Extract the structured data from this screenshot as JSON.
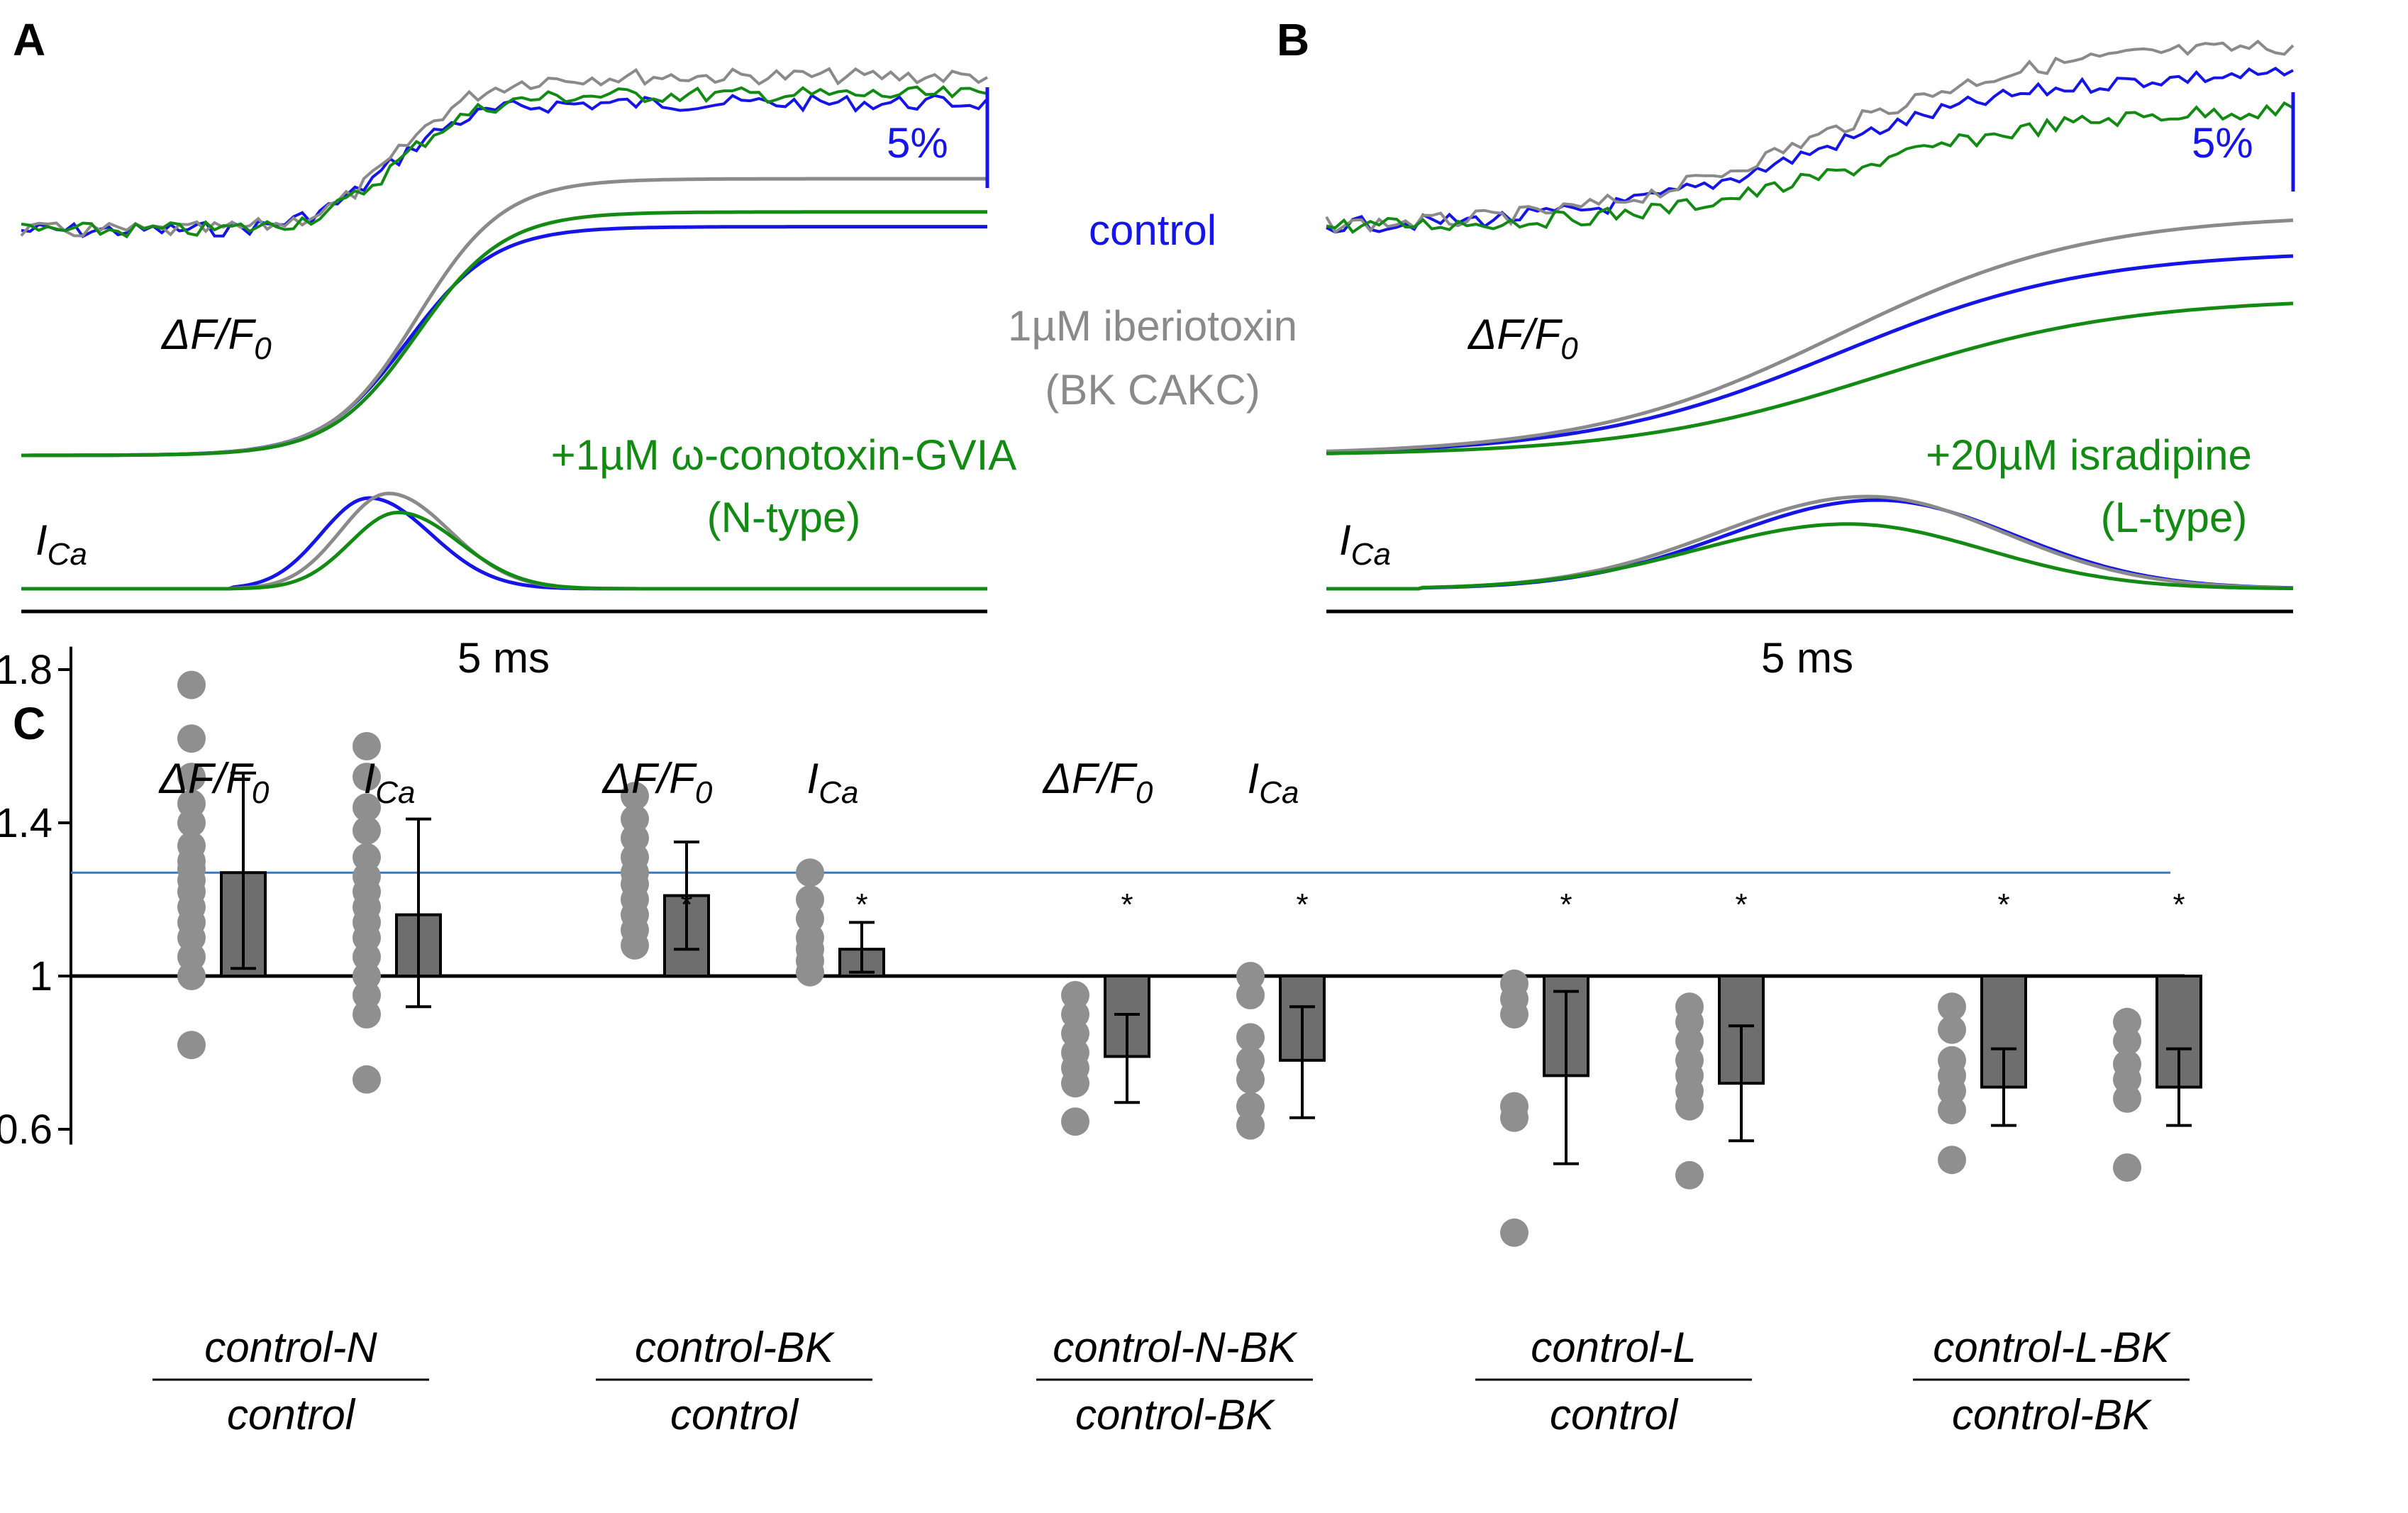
{
  "panels": {
    "A": "A",
    "B": "B",
    "C": "C"
  },
  "colors": {
    "control": "#1515e6",
    "toxin": "#8a8a8a",
    "blocker": "#138a13",
    "dots": "#8f8f8f",
    "bars": "#6e6e6e",
    "refline": "#3a78c0"
  },
  "legend": {
    "control": "control",
    "iberiotoxin": "1µM iberiotoxin",
    "iberiotoxin_sub": "(BK CAKC)",
    "conotoxin": "+1µM ω-conotoxin-GVIA",
    "conotoxin_sub": "(N-type)",
    "isradipine": "+20µM isradipine",
    "isradipine_sub": "(L-type)"
  },
  "trace_labels": {
    "dff": "ΔF/F",
    "dff_sub": "0",
    "ica": "I",
    "ica_sub": "Ca",
    "scale_pct": "5%",
    "time_scale": "5 ms"
  },
  "chart_data": [
    {
      "panel": "A",
      "type": "line",
      "title": "",
      "xlabel": "5 ms",
      "ylabel": "ΔF/F0 (5% scale); ICa",
      "series": [
        {
          "name": "control",
          "trace": "ΔF/F0",
          "baseline": 0,
          "plateau": 0.62,
          "midpoint": 0.4
        },
        {
          "name": "1µM iberiotoxin (BK CAKC)",
          "trace": "ΔF/F0",
          "baseline": 0,
          "plateau": 0.75,
          "midpoint": 0.41
        },
        {
          "name": "+1µM ω-conotoxin-GVIA (N-type)",
          "trace": "ΔF/F0",
          "baseline": 0,
          "plateau": 0.66,
          "midpoint": 0.41
        },
        {
          "name": "control",
          "trace": "ICa",
          "peak_time": 0.36,
          "peak": 1.0
        },
        {
          "name": "1µM iberiotoxin (BK CAKC)",
          "trace": "ICa",
          "peak_time": 0.38,
          "peak": 1.05
        },
        {
          "name": "+1µM ω-conotoxin-GVIA (N-type)",
          "trace": "ICa",
          "peak_time": 0.39,
          "peak": 0.84
        }
      ]
    },
    {
      "panel": "B",
      "type": "line",
      "title": "",
      "xlabel": "5 ms",
      "ylabel": "ΔF/F0 (5% scale); ICa",
      "series": [
        {
          "name": "control",
          "trace": "ΔF/F0",
          "baseline": 0,
          "plateau": 0.78,
          "midpoint": 0.53
        },
        {
          "name": "1µM iberiotoxin (BK CAKC)",
          "trace": "ΔF/F0",
          "baseline": 0,
          "plateau": 0.92,
          "midpoint": 0.53
        },
        {
          "name": "+20µM isradipine (L-type)",
          "trace": "ΔF/F0",
          "baseline": 0,
          "plateau": 0.6,
          "midpoint": 0.57
        },
        {
          "name": "control",
          "trace": "ICa",
          "peak_time": 0.57,
          "peak": 1.0
        },
        {
          "name": "1µM iberiotoxin (BK CAKC)",
          "trace": "ICa",
          "peak_time": 0.56,
          "peak": 1.04
        },
        {
          "name": "+20µM isradipine (L-type)",
          "trace": "ICa",
          "peak_time": 0.54,
          "peak": 0.73
        }
      ]
    },
    {
      "panel": "C",
      "type": "bar",
      "title": "",
      "xlabel": "",
      "ylabel": "",
      "ylim": [
        0.6,
        1.8
      ],
      "yticks": [
        "0.6",
        "1",
        "1.4",
        "1.8"
      ],
      "ytick_values": [
        0.6,
        1.0,
        1.4,
        1.8
      ],
      "baseline": 1.0,
      "reference_line": 1.27,
      "significance_marker": "*",
      "groups": [
        {
          "numerator": "control-N",
          "denominator": "control",
          "show_measure_labels": true
        },
        {
          "numerator": "control-BK",
          "denominator": "control",
          "show_measure_labels": true
        },
        {
          "numerator": "control-N-BK",
          "denominator": "control-BK",
          "show_measure_labels": true
        },
        {
          "numerator": "control-L",
          "denominator": "control",
          "show_measure_labels": false
        },
        {
          "numerator": "control-L-BK",
          "denominator": "control-BK",
          "show_measure_labels": false
        }
      ],
      "measure_labels": {
        "dff": "ΔF/F",
        "dff_sub": "0",
        "ica": "I",
        "ica_sub": "Ca"
      },
      "bars": [
        {
          "group": 0,
          "measure": "ΔF/F0",
          "mean": 1.27,
          "err_lo": 1.02,
          "err_hi": 1.53,
          "significant": false,
          "points": [
            1.76,
            1.62,
            1.52,
            1.45,
            1.4,
            1.34,
            1.3,
            1.28,
            1.25,
            1.22,
            1.18,
            1.14,
            1.1,
            1.05,
            1.0,
            0.82
          ]
        },
        {
          "group": 0,
          "measure": "ICa",
          "mean": 1.16,
          "err_lo": 0.92,
          "err_hi": 1.41,
          "significant": false,
          "points": [
            1.6,
            1.52,
            1.44,
            1.38,
            1.31,
            1.26,
            1.22,
            1.18,
            1.14,
            1.1,
            1.05,
            1.0,
            0.95,
            0.9,
            0.73
          ]
        },
        {
          "group": 1,
          "measure": "ΔF/F0",
          "mean": 1.21,
          "err_lo": 1.07,
          "err_hi": 1.35,
          "significant": true,
          "points": [
            1.47,
            1.41,
            1.36,
            1.31,
            1.27,
            1.24,
            1.2,
            1.16,
            1.12,
            1.08
          ]
        },
        {
          "group": 1,
          "measure": "ICa",
          "mean": 1.07,
          "err_lo": 1.01,
          "err_hi": 1.14,
          "significant": true,
          "points": [
            1.27,
            1.2,
            1.15,
            1.1,
            1.07,
            1.04,
            1.01
          ]
        },
        {
          "group": 2,
          "measure": "ΔF/F0",
          "mean": 0.79,
          "err_lo": 0.67,
          "err_hi": 0.9,
          "significant": true,
          "points": [
            0.95,
            0.9,
            0.85,
            0.8,
            0.76,
            0.72,
            0.62
          ]
        },
        {
          "group": 2,
          "measure": "ICa",
          "mean": 0.78,
          "err_lo": 0.63,
          "err_hi": 0.92,
          "significant": true,
          "points": [
            1.0,
            0.95,
            0.84,
            0.78,
            0.73,
            0.66,
            0.61
          ]
        },
        {
          "group": 3,
          "measure": "ΔF/F0",
          "mean": 0.74,
          "err_lo": 0.51,
          "err_hi": 0.96,
          "significant": true,
          "points": [
            0.98,
            0.94,
            0.9,
            0.66,
            0.63,
            0.33
          ]
        },
        {
          "group": 3,
          "measure": "ICa",
          "mean": 0.72,
          "err_lo": 0.57,
          "err_hi": 0.87,
          "significant": true,
          "points": [
            0.92,
            0.88,
            0.83,
            0.78,
            0.74,
            0.7,
            0.66,
            0.48
          ]
        },
        {
          "group": 4,
          "measure": "ΔF/F0",
          "mean": 0.71,
          "err_lo": 0.61,
          "err_hi": 0.81,
          "significant": true,
          "points": [
            0.92,
            0.86,
            0.78,
            0.74,
            0.7,
            0.65,
            0.52
          ]
        },
        {
          "group": 4,
          "measure": "ICa",
          "mean": 0.71,
          "err_lo": 0.61,
          "err_hi": 0.81,
          "significant": true,
          "points": [
            0.88,
            0.83,
            0.77,
            0.73,
            0.68,
            0.5
          ]
        }
      ]
    }
  ]
}
